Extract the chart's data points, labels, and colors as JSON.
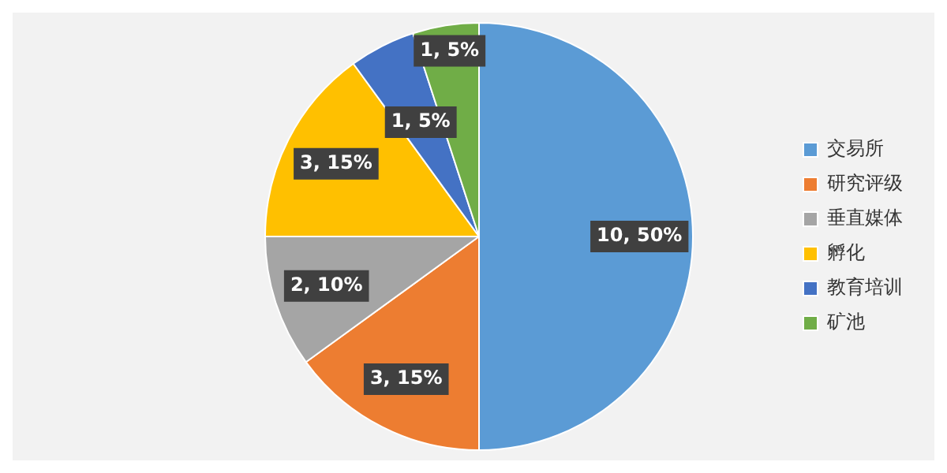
{
  "chart_data": {
    "type": "pie",
    "categories": [
      "交易所",
      "研究评级",
      "垂直媒体",
      "孵化",
      "教育培训",
      "矿池"
    ],
    "values": [
      10,
      3,
      2,
      3,
      1,
      1
    ],
    "colors": [
      "#5b9bd5",
      "#ed7d31",
      "#a5a5a5",
      "#ffc000",
      "#4472c4",
      "#70ad47"
    ],
    "value_labels": [
      "10, 50%",
      "3, 15%",
      "2, 10%",
      "3, 15%",
      "1, 5%",
      "1, 5%"
    ],
    "legend": "right"
  }
}
